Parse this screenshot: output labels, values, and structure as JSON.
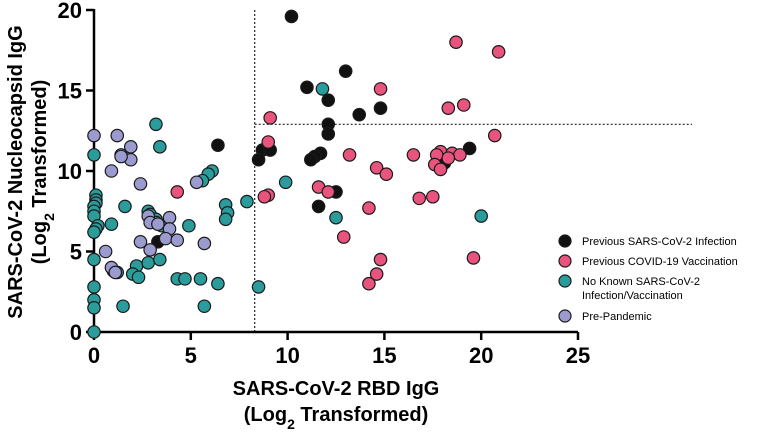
{
  "chart_data": {
    "type": "scatter",
    "xlabel_line1": "SARS-CoV-2 RBD IgG",
    "xlabel_line2_prefix": "(Log",
    "xlabel_line2_sub": "2",
    "xlabel_line2_suffix": " Transformed)",
    "ylabel_line1": "SARS-CoV-2 Nucleocapsid IgG",
    "ylabel_line2_prefix": "(Log",
    "ylabel_line2_sub": "2",
    "ylabel_line2_suffix": " Transformed)",
    "xlim": [
      0,
      25
    ],
    "ylim": [
      0,
      20
    ],
    "xticks": [
      0,
      5,
      10,
      15,
      20,
      25
    ],
    "yticks": [
      0,
      5,
      10,
      15,
      20
    ],
    "reference_lines": {
      "x_threshold": 8.3,
      "y_threshold": 12.9,
      "y_threshold_x_start": 8.3,
      "y_threshold_x_end": 25
    },
    "legend_position": "right",
    "series": [
      {
        "name": "Previous SARS-CoV-2 Infection",
        "color": "#111111",
        "points": [
          [
            10.2,
            19.6
          ],
          [
            13.0,
            16.2
          ],
          [
            11.0,
            15.2
          ],
          [
            12.1,
            14.4
          ],
          [
            14.8,
            13.9
          ],
          [
            13.7,
            13.5
          ],
          [
            12.1,
            12.9
          ],
          [
            12.1,
            12.3
          ],
          [
            6.4,
            11.6
          ],
          [
            8.7,
            11.3
          ],
          [
            9.1,
            11.3
          ],
          [
            11.7,
            11.1
          ],
          [
            11.4,
            10.9
          ],
          [
            11.2,
            10.7
          ],
          [
            8.5,
            10.7
          ],
          [
            19.4,
            11.4
          ],
          [
            18.1,
            10.5
          ],
          [
            12.5,
            8.7
          ],
          [
            11.6,
            7.8
          ],
          [
            3.3,
            5.6
          ]
        ]
      },
      {
        "name": "Previous COVID-19 Vaccination",
        "color": "#e8547d",
        "points": [
          [
            18.7,
            18.0
          ],
          [
            20.9,
            17.4
          ],
          [
            14.8,
            15.1
          ],
          [
            19.1,
            14.1
          ],
          [
            18.3,
            13.9
          ],
          [
            9.1,
            13.3
          ],
          [
            20.7,
            12.2
          ],
          [
            9.0,
            11.8
          ],
          [
            17.9,
            11.2
          ],
          [
            18.5,
            11.1
          ],
          [
            16.5,
            11.0
          ],
          [
            17.7,
            11.0
          ],
          [
            18.9,
            11.0
          ],
          [
            18.3,
            10.8
          ],
          [
            13.2,
            11.0
          ],
          [
            17.6,
            10.4
          ],
          [
            17.9,
            10.1
          ],
          [
            14.6,
            10.2
          ],
          [
            11.6,
            9.0
          ],
          [
            15.1,
            9.8
          ],
          [
            12.1,
            8.7
          ],
          [
            9.0,
            8.5
          ],
          [
            8.8,
            8.4
          ],
          [
            16.8,
            8.3
          ],
          [
            17.5,
            8.4
          ],
          [
            14.2,
            7.7
          ],
          [
            12.9,
            5.9
          ],
          [
            14.8,
            4.5
          ],
          [
            19.6,
            4.6
          ],
          [
            14.6,
            3.6
          ],
          [
            14.2,
            3.0
          ],
          [
            4.3,
            8.7
          ]
        ]
      },
      {
        "name": "No Known SARS-CoV-2 Infection/Vaccination",
        "color": "#2a9c9c",
        "points": [
          [
            11.8,
            15.1
          ],
          [
            3.2,
            12.9
          ],
          [
            0.0,
            11.0
          ],
          [
            3.4,
            11.5
          ],
          [
            6.1,
            10.0
          ],
          [
            5.9,
            9.8
          ],
          [
            5.6,
            9.4
          ],
          [
            0.1,
            8.5
          ],
          [
            0.1,
            8.2
          ],
          [
            0.1,
            8.0
          ],
          [
            9.9,
            9.3
          ],
          [
            0.0,
            7.8
          ],
          [
            0.0,
            7.5
          ],
          [
            0.0,
            7.2
          ],
          [
            7.9,
            8.1
          ],
          [
            6.8,
            7.9
          ],
          [
            6.9,
            7.4
          ],
          [
            0.2,
            6.6
          ],
          [
            0.1,
            6.4
          ],
          [
            0.0,
            6.2
          ],
          [
            1.6,
            7.8
          ],
          [
            2.8,
            7.5
          ],
          [
            2.9,
            7.3
          ],
          [
            3.2,
            7.0
          ],
          [
            3.2,
            6.8
          ],
          [
            3.5,
            6.6
          ],
          [
            0.9,
            6.7
          ],
          [
            4.9,
            6.6
          ],
          [
            6.8,
            7.0
          ],
          [
            12.5,
            7.1
          ],
          [
            20.0,
            7.2
          ],
          [
            0.0,
            4.5
          ],
          [
            2.2,
            4.1
          ],
          [
            2.8,
            4.3
          ],
          [
            3.4,
            4.5
          ],
          [
            1.0,
            3.8
          ],
          [
            2.0,
            3.6
          ],
          [
            1.2,
            3.7
          ],
          [
            2.3,
            3.4
          ],
          [
            4.3,
            3.3
          ],
          [
            4.7,
            3.3
          ],
          [
            5.5,
            3.3
          ],
          [
            6.4,
            3.0
          ],
          [
            0.0,
            2.8
          ],
          [
            8.5,
            2.8
          ],
          [
            0.0,
            2.0
          ],
          [
            1.5,
            1.6
          ],
          [
            5.7,
            1.6
          ],
          [
            0.0,
            1.5
          ],
          [
            0.0,
            0.0
          ]
        ]
      },
      {
        "name": "Pre-Pandemic",
        "color": "#9b9bd0",
        "points": [
          [
            0.0,
            12.2
          ],
          [
            1.2,
            12.2
          ],
          [
            1.9,
            11.5
          ],
          [
            1.4,
            11.0
          ],
          [
            1.9,
            10.7
          ],
          [
            1.4,
            10.9
          ],
          [
            0.9,
            10.0
          ],
          [
            2.4,
            9.2
          ],
          [
            5.3,
            9.3
          ],
          [
            2.8,
            7.2
          ],
          [
            3.9,
            7.1
          ],
          [
            2.9,
            6.8
          ],
          [
            3.3,
            6.7
          ],
          [
            3.9,
            6.4
          ],
          [
            2.4,
            5.6
          ],
          [
            3.7,
            5.8
          ],
          [
            4.3,
            5.7
          ],
          [
            5.7,
            5.5
          ],
          [
            0.6,
            5.0
          ],
          [
            0.9,
            4.0
          ],
          [
            2.9,
            5.1
          ],
          [
            1.1,
            3.7
          ]
        ]
      }
    ]
  }
}
